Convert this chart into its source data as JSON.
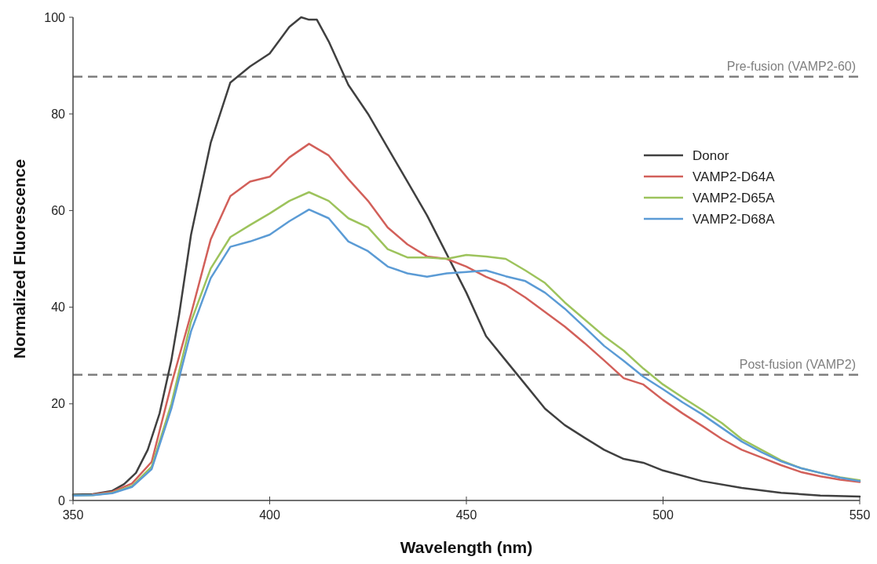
{
  "chart_data": {
    "type": "line",
    "xlabel": "Wavelength (nm)",
    "ylabel": "Normalized Fluorescence",
    "xlim": [
      350,
      550
    ],
    "xticks": [
      350,
      400,
      450,
      500,
      550
    ],
    "ylim": [
      0,
      100
    ],
    "yticks": [
      0,
      20,
      40,
      60,
      80,
      100
    ],
    "grid": false,
    "legend": "right",
    "line_style": "solid",
    "marker": "none",
    "x": [
      350,
      355,
      360,
      365,
      370,
      375,
      380,
      385,
      390,
      395,
      400,
      405,
      410,
      415,
      420,
      425,
      430,
      435,
      440,
      445,
      450,
      455,
      460,
      465,
      470,
      475,
      480,
      485,
      490,
      495,
      500,
      505,
      510,
      515,
      520,
      525,
      530,
      535,
      540,
      545,
      550
    ],
    "series": [
      {
        "name": "Donor",
        "color": "#404040",
        "x": [
          350,
          355,
          360,
          363,
          366,
          369,
          372,
          375,
          377,
          380,
          385,
          390,
          395,
          400,
          405,
          408,
          410,
          412,
          415,
          420,
          425,
          430,
          435,
          440,
          445,
          450,
          455,
          460,
          465,
          470,
          475,
          480,
          485,
          490,
          495,
          500,
          510,
          520,
          530,
          540,
          550
        ],
        "values": [
          1.2,
          1.3,
          2,
          3.4,
          5.7,
          10.5,
          18,
          29,
          38.6,
          55,
          74,
          86.5,
          89.8,
          92.5,
          98,
          100,
          99.5,
          99.5,
          95,
          86,
          80,
          73,
          66,
          59,
          51,
          43,
          34,
          29,
          24,
          19,
          15.6,
          13,
          10.5,
          8.6,
          7.8,
          6.2,
          4,
          2.6,
          1.6,
          1,
          0.8
        ]
      },
      {
        "name": "VAMP2-D64A",
        "color": "#d2605a",
        "values": [
          null,
          1.2,
          1.8,
          3.5,
          8,
          24,
          38.6,
          54,
          63,
          66,
          67,
          71,
          73.8,
          71.4,
          66.5,
          62,
          56.5,
          53,
          50.5,
          50,
          48.4,
          46.3,
          44.6,
          42,
          39,
          36,
          32.6,
          29,
          25.3,
          24,
          20.8,
          18,
          15.4,
          12.7,
          10.5,
          8.9,
          7.3,
          5.9,
          5,
          4.3,
          3.8
        ]
      },
      {
        "name": "VAMP2-D65A",
        "color": "#9dc35c",
        "values": [
          1,
          1.1,
          1.6,
          3,
          7,
          20,
          37,
          48,
          54.5,
          57,
          59.4,
          62,
          63.8,
          62,
          58.4,
          56.5,
          52,
          50.3,
          50.3,
          50,
          50.8,
          50.5,
          50,
          47.6,
          45,
          41,
          37.5,
          34,
          31,
          27.3,
          24,
          21.3,
          18.7,
          16,
          12.7,
          10.5,
          8.3,
          6.7,
          5.7,
          4.8,
          4.2
        ]
      },
      {
        "name": "VAMP2-D68A",
        "color": "#5b9bd5",
        "values": [
          1,
          1.1,
          1.5,
          2.8,
          6.5,
          19,
          35,
          46,
          52.5,
          53.6,
          55,
          57.8,
          60.2,
          58.4,
          53.6,
          51.6,
          48.4,
          47,
          46.3,
          47,
          47.3,
          47.6,
          46.4,
          45.4,
          43,
          39.7,
          35.9,
          32,
          28.9,
          25.6,
          23,
          20.3,
          17.8,
          15,
          12.2,
          10,
          8.1,
          6.7,
          5.7,
          4.7,
          4
        ]
      }
    ],
    "ref_lines": [
      {
        "axis": "y",
        "value": 87.7,
        "label": "Pre-fusion (VAMP2-60)",
        "color": "#7f7f7f",
        "line_style": "dashed"
      },
      {
        "axis": "y",
        "value": 26,
        "label": "Post-fusion (VAMP2)",
        "color": "#7f7f7f",
        "line_style": "dashed"
      }
    ]
  }
}
